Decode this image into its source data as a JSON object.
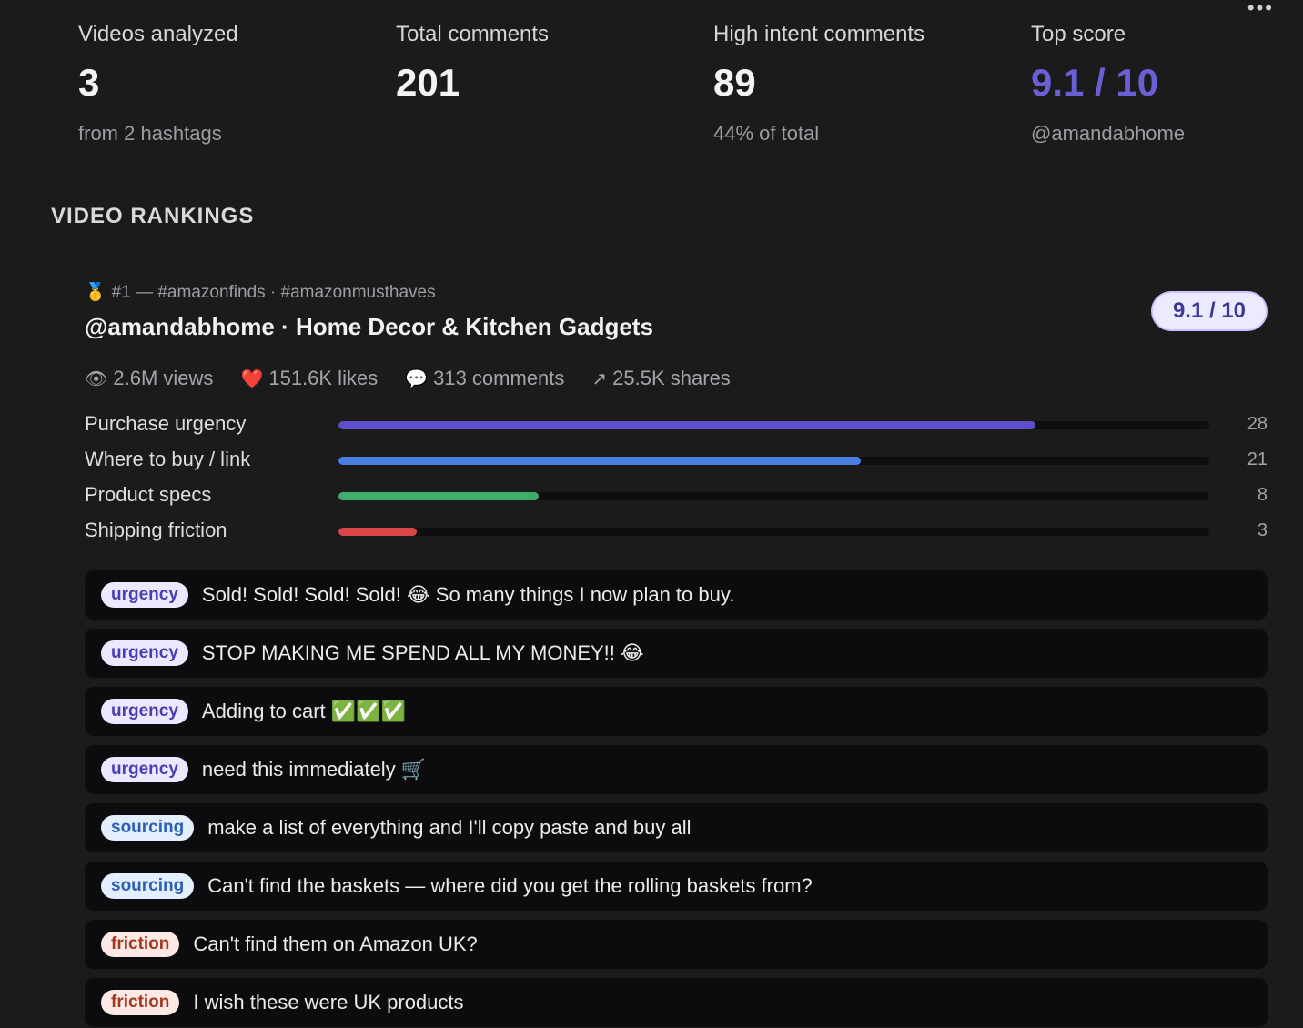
{
  "menu_icon": "more-horizontal-icon",
  "stats": [
    {
      "label": "Videos analyzed",
      "value": "3",
      "sub": "from 2 hashtags"
    },
    {
      "label": "Total comments",
      "value": "201",
      "sub": ""
    },
    {
      "label": "High intent comments",
      "value": "89",
      "sub": "44% of total"
    },
    {
      "label": "Top score",
      "value": "9.1 / 10",
      "sub": "@amandabhome"
    }
  ],
  "accent_color": "#6b5fd6",
  "section_title": "VIDEO RANKINGS",
  "video": {
    "medal": "🥇",
    "meta": "#1 — #amazonfinds · #amazonmusthaves",
    "title": "@amandabhome · Home Decor & Kitchen Gadgets",
    "score": "9.1 / 10",
    "engagement": [
      {
        "icon": "eye-icon",
        "glyph": "👁",
        "text": "2.6M views"
      },
      {
        "icon": "heart-icon",
        "glyph": "❤️",
        "text": "151.6K likes"
      },
      {
        "icon": "speech-bubble-icon",
        "glyph": "💬",
        "text": "313 comments"
      },
      {
        "icon": "share-arrow-icon",
        "glyph": "↗",
        "text": "25.5K shares"
      }
    ],
    "intent_bars": [
      {
        "label": "Purchase urgency",
        "value": 28,
        "fraction": 0.8,
        "color": "#5d4fc9"
      },
      {
        "label": "Where to buy / link",
        "value": 21,
        "fraction": 0.6,
        "color": "#4a7fe0"
      },
      {
        "label": "Product specs",
        "value": 8,
        "fraction": 0.23,
        "color": "#3fae6a"
      },
      {
        "label": "Shipping friction",
        "value": 3,
        "fraction": 0.09,
        "color": "#d9464a"
      }
    ],
    "comments": [
      {
        "tag": "urgency",
        "text": "Sold! Sold! Sold! Sold! 😂 So many things I now plan to buy."
      },
      {
        "tag": "urgency",
        "text": "STOP MAKING ME SPEND ALL MY MONEY!! 😂"
      },
      {
        "tag": "urgency",
        "text": "Adding to cart ✅✅✅"
      },
      {
        "tag": "urgency",
        "text": "need this immediately 🛒"
      },
      {
        "tag": "sourcing",
        "text": "make a list of everything and I'll copy paste and buy all"
      },
      {
        "tag": "sourcing",
        "text": "Can't find the baskets — where did you get the rolling baskets from?"
      },
      {
        "tag": "friction",
        "text": "Can't find them on Amazon UK?"
      },
      {
        "tag": "friction",
        "text": "I wish these were UK products"
      }
    ]
  }
}
